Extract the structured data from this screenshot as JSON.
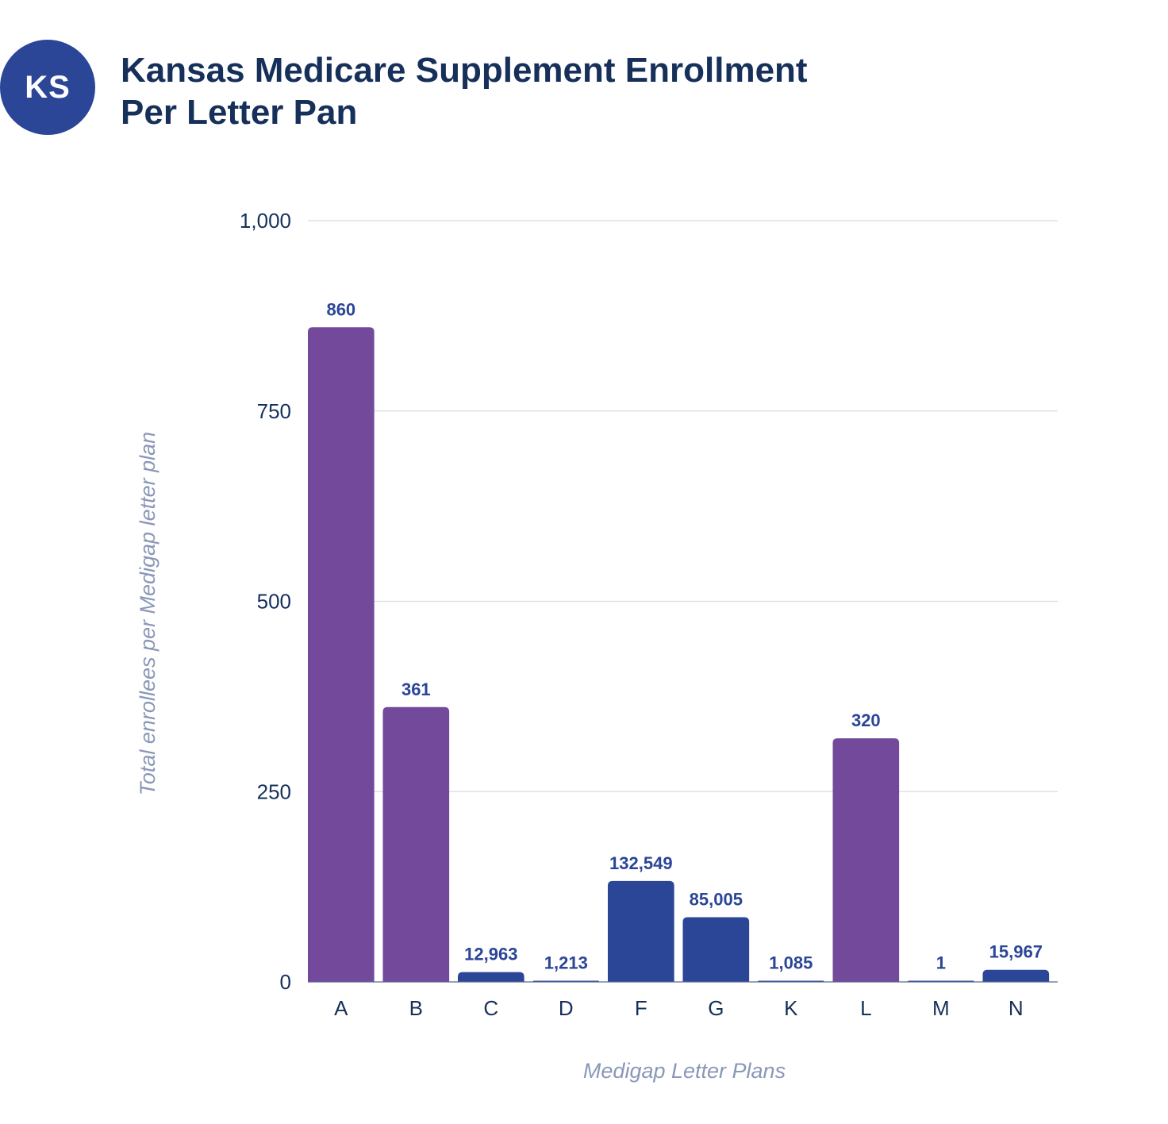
{
  "header": {
    "badge": "KS",
    "title_line1": "Kansas Medicare Supplement Enrollment",
    "title_line2": "Per Letter Pan"
  },
  "chart_data": {
    "type": "bar",
    "title": "Kansas Medicare Supplement Enrollment Per Letter Pan",
    "xlabel": "Medigap Letter Plans",
    "ylabel": "Total enrollees per Medigap letter plan",
    "ylim": [
      0,
      1000
    ],
    "yticks": [
      0,
      250,
      500,
      750,
      1000
    ],
    "ytick_labels": [
      "0",
      "250",
      "500",
      "750",
      "1,000"
    ],
    "grid": true,
    "legend": "none",
    "categories": [
      "A",
      "B",
      "C",
      "D",
      "F",
      "G",
      "K",
      "L",
      "M",
      "N"
    ],
    "values": [
      860,
      361,
      12963,
      1213,
      132549,
      85005,
      1085,
      320,
      1,
      15967
    ],
    "value_labels": [
      "860",
      "361",
      "12,963",
      "1,213",
      "132,549",
      "85,005",
      "1,085",
      "320",
      "1",
      "15,967"
    ],
    "display_heights": [
      860,
      361,
      12.963,
      1.213,
      132.549,
      85.005,
      1.085,
      320,
      0.001,
      15.967
    ],
    "note": "Blue bars are displayed at 1/1000 scale relative to the axis",
    "colors": [
      "#734a9b",
      "#734a9b",
      "#2b4597",
      "#2b4597",
      "#2b4597",
      "#2b4597",
      "#2b4597",
      "#734a9b",
      "#2b4597",
      "#2b4597"
    ],
    "palette": {
      "purple": "#734a9b",
      "blue": "#2b4597",
      "grid": "#d9dbe6",
      "axis_text": "#16305a",
      "axis_title": "#8a97b8"
    }
  }
}
